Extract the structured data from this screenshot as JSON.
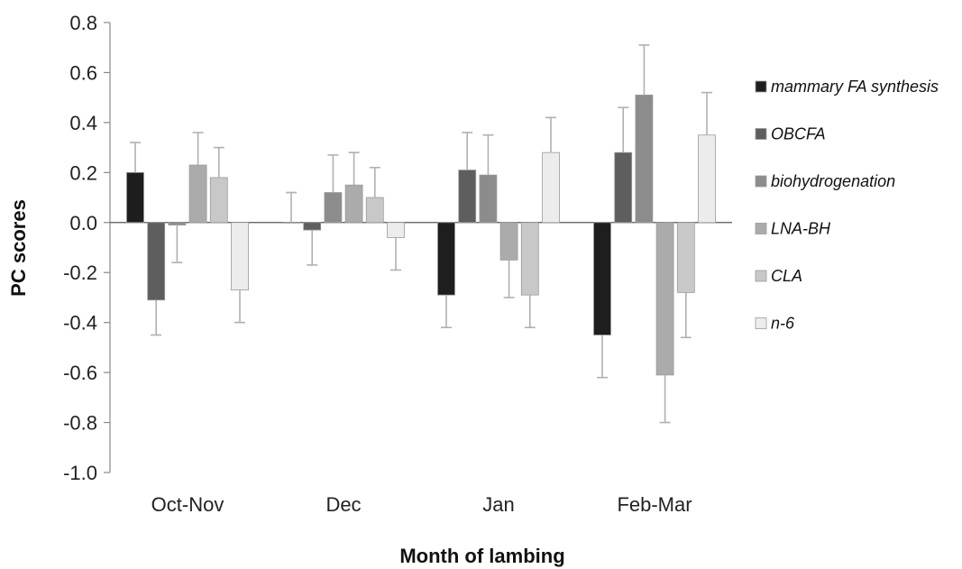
{
  "chart_data": {
    "type": "bar",
    "title": "",
    "xlabel": "Month of lambing",
    "ylabel": "PC scores",
    "ylim": [
      -1.0,
      0.8
    ],
    "yticks": [
      0.8,
      0.6,
      0.4,
      0.2,
      0.0,
      -0.2,
      -0.4,
      -0.6,
      -0.8,
      -1.0
    ],
    "ytick_labels": [
      "0.8",
      "0.6",
      "0.4",
      "0.2",
      "0.0",
      "-0.2",
      "-0.4",
      "-0.6",
      "-0.8",
      "-1.0"
    ],
    "categories": [
      "Oct-Nov",
      "Dec",
      "Jan",
      "Feb-Mar"
    ],
    "grid": false,
    "legend_position": "right",
    "series": [
      {
        "name": "mammary FA synthesis",
        "color": "#1e1e1e",
        "values": [
          0.2,
          0.0,
          -0.29,
          -0.45
        ],
        "errors": [
          0.12,
          0.12,
          0.13,
          0.17
        ]
      },
      {
        "name": "OBCFA",
        "color": "#5e5e5e",
        "values": [
          -0.31,
          -0.03,
          0.21,
          0.28
        ],
        "errors": [
          0.14,
          0.14,
          0.15,
          0.18
        ]
      },
      {
        "name": "biohydrogenation",
        "color": "#8c8c8c",
        "values": [
          -0.01,
          0.12,
          0.19,
          0.51
        ],
        "errors": [
          0.15,
          0.15,
          0.16,
          0.2
        ]
      },
      {
        "name": "LNA-BH",
        "color": "#ababab",
        "values": [
          0.23,
          0.15,
          -0.15,
          -0.61
        ],
        "errors": [
          0.13,
          0.13,
          0.15,
          0.19
        ]
      },
      {
        "name": "CLA",
        "color": "#c8c8c8",
        "values": [
          0.18,
          0.1,
          -0.29,
          -0.28
        ],
        "errors": [
          0.12,
          0.12,
          0.13,
          0.18
        ]
      },
      {
        "name": "n-6",
        "color": "#ececec",
        "values": [
          -0.27,
          -0.06,
          0.28,
          0.35
        ],
        "errors": [
          0.13,
          0.13,
          0.14,
          0.17
        ]
      }
    ]
  }
}
